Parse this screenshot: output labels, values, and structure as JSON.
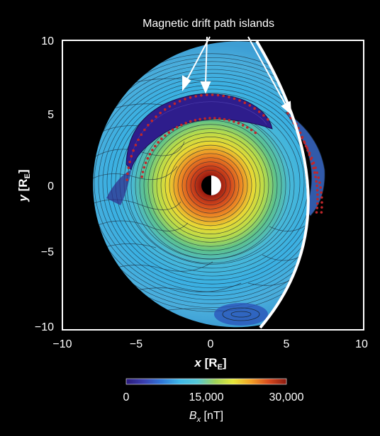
{
  "figure": {
    "annotation": "Magnetic drift path islands",
    "x_axis_label": "x",
    "y_axis_label": "y",
    "axis_unit_main": "R",
    "axis_unit_sub": "E",
    "x_ticks": [
      "−10",
      "−5",
      "0",
      "5",
      "10"
    ],
    "y_ticks": [
      "10",
      "5",
      "0",
      "−5",
      "−10"
    ],
    "colorbar": {
      "ticks": [
        "0",
        "15,000",
        "30,000"
      ],
      "label_main": "B",
      "label_sub": "x",
      "label_unit": "[nT]",
      "colors": [
        "#2a1a7a",
        "#3a3fb0",
        "#2f78d8",
        "#3fb8e8",
        "#56c8d6",
        "#9fd35a",
        "#e6e83a",
        "#f2a226",
        "#d84a1e",
        "#8a1a10"
      ]
    }
  }
}
